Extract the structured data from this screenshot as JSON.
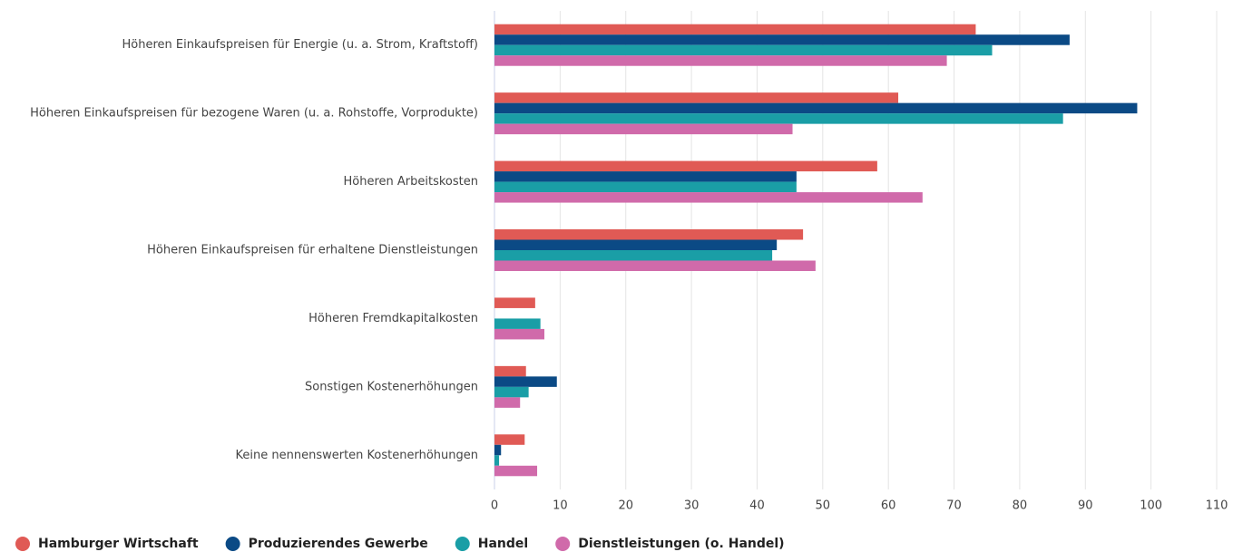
{
  "chart_data": {
    "type": "bar",
    "orientation": "horizontal",
    "categories": [
      "Höheren Einkaufspreisen für Energie (u. a. Strom, Kraftstoff)",
      "Höheren Einkaufspreisen für bezogene Waren (u. a. Rohstoffe, Vorprodukte)",
      "Höheren Arbeitskosten",
      "Höheren Einkaufspreisen für erhaltene Dienstleistungen",
      "Höheren Fremdkapitalkosten",
      "Sonstigen Kostenerhöhungen",
      "Keine nennenswerten Kostenerhöhungen"
    ],
    "series": [
      {
        "name": "Hamburger Wirtschaft",
        "color": "#e05a55",
        "values": [
          73.3,
          61.5,
          58.3,
          47,
          6.2,
          4.8,
          4.6
        ]
      },
      {
        "name": "Produzierendes Gewerbe",
        "color": "#0b4a85",
        "values": [
          87.6,
          97.9,
          46,
          43,
          0,
          9.5,
          1
        ]
      },
      {
        "name": "Handel",
        "color": "#1a9ea6",
        "values": [
          75.8,
          86.6,
          46,
          42.3,
          7,
          5.2,
          0.7
        ]
      },
      {
        "name": "Dienstleistungen (o. Handel)",
        "color": "#d06aaa",
        "values": [
          68.9,
          45.4,
          65.2,
          48.9,
          7.6,
          3.9,
          6.5
        ]
      }
    ],
    "xlim": [
      0,
      110
    ],
    "xticks": [
      0,
      10,
      20,
      30,
      40,
      50,
      60,
      70,
      80,
      90,
      100,
      110
    ],
    "grid": true
  }
}
